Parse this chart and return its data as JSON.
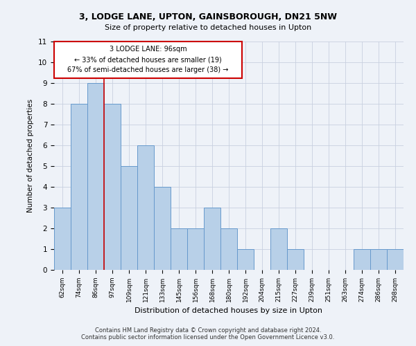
{
  "title1": "3, LODGE LANE, UPTON, GAINSBOROUGH, DN21 5NW",
  "title2": "Size of property relative to detached houses in Upton",
  "xlabel": "Distribution of detached houses by size in Upton",
  "ylabel": "Number of detached properties",
  "categories": [
    "62sqm",
    "74sqm",
    "86sqm",
    "97sqm",
    "109sqm",
    "121sqm",
    "133sqm",
    "145sqm",
    "156sqm",
    "168sqm",
    "180sqm",
    "192sqm",
    "204sqm",
    "215sqm",
    "227sqm",
    "239sqm",
    "251sqm",
    "263sqm",
    "274sqm",
    "286sqm",
    "298sqm"
  ],
  "values": [
    3,
    8,
    9,
    8,
    5,
    6,
    4,
    2,
    2,
    3,
    2,
    1,
    0,
    2,
    1,
    0,
    0,
    0,
    1,
    1,
    1
  ],
  "bar_color": "#b8d0e8",
  "bar_edge_color": "#6699cc",
  "marker_label": "3 LODGE LANE: 96sqm",
  "annotation_line1": "← 33% of detached houses are smaller (19)",
  "annotation_line2": "67% of semi-detached houses are larger (38) →",
  "box_color": "#cc0000",
  "ylim": [
    0,
    11
  ],
  "yticks": [
    0,
    1,
    2,
    3,
    4,
    5,
    6,
    7,
    8,
    9,
    10,
    11
  ],
  "footer1": "Contains HM Land Registry data © Crown copyright and database right 2024.",
  "footer2": "Contains public sector information licensed under the Open Government Licence v3.0.",
  "bg_color": "#eef2f8",
  "grid_color": "#c8d0e0"
}
